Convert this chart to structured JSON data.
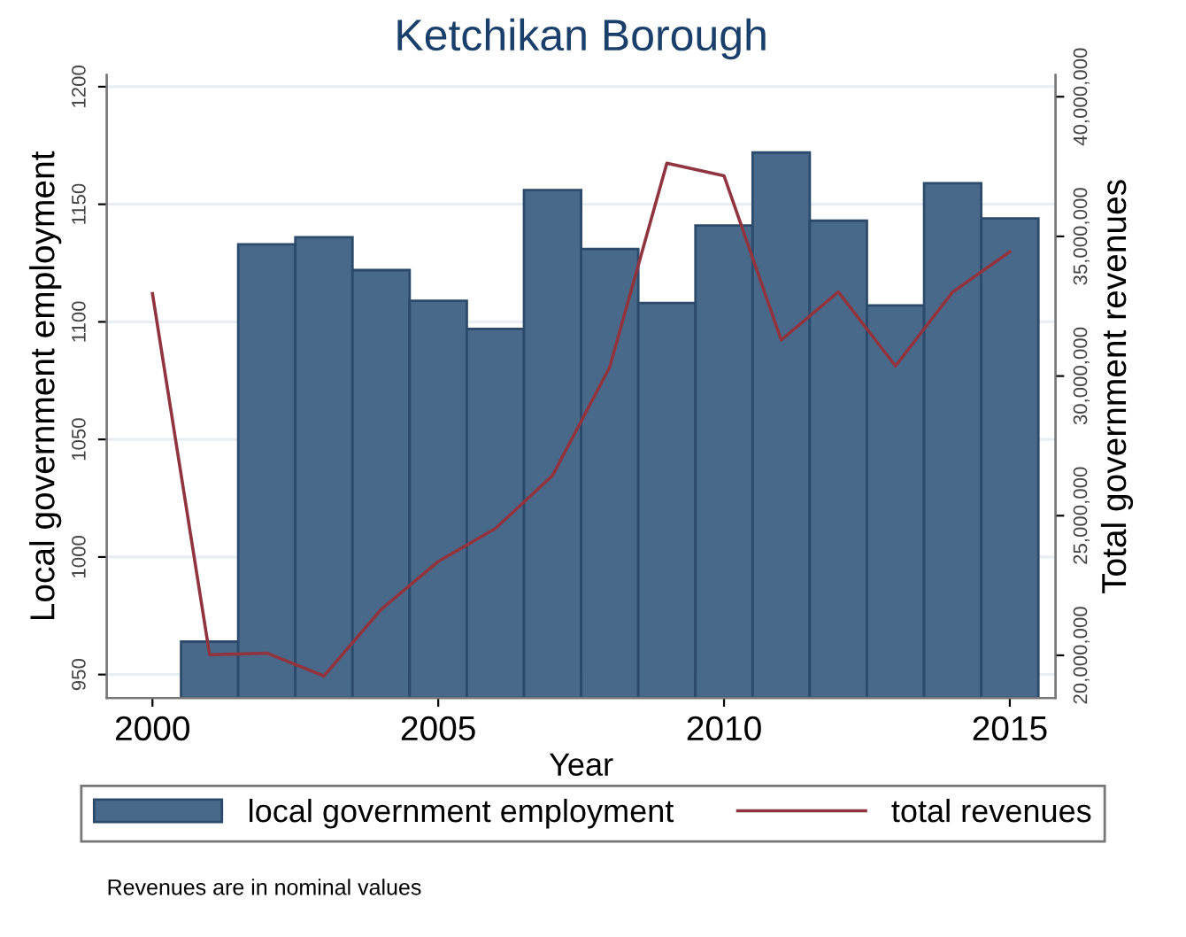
{
  "chart_data": {
    "type": "bar",
    "title": "Ketchikan Borough",
    "xlabel": "Year",
    "ylabel": "Local government employment",
    "y2label": "Total government revenues",
    "x": [
      2000,
      2001,
      2002,
      2003,
      2004,
      2005,
      2006,
      2007,
      2008,
      2009,
      2010,
      2011,
      2012,
      2013,
      2014,
      2015
    ],
    "series": [
      {
        "name": "local government employment",
        "color": "#48698a",
        "values": [
          null,
          964,
          1133,
          1136,
          1122,
          1109,
          1097,
          1156,
          1131,
          1108,
          1141,
          1172,
          1143,
          1107,
          1159,
          1144
        ]
      },
      {
        "name": "total revenues",
        "type": "line",
        "axis": "y2",
        "color": "#903540",
        "values": [
          32950000,
          20020000,
          20080000,
          19260000,
          21640000,
          23360000,
          24540000,
          26440000,
          30320000,
          37620000,
          37170000,
          31290000,
          33010000,
          30360000,
          33010000,
          34450000
        ]
      }
    ],
    "xlim": [
      1999.2,
      2015.8
    ],
    "xticks": [
      2000,
      2005,
      2010,
      2015
    ],
    "ylim": [
      940,
      1205
    ],
    "yticks": [
      950,
      1000,
      1050,
      1100,
      1150,
      1200
    ],
    "y2lim": [
      18470000,
      40780000
    ],
    "y2ticks": [
      {
        "value": 20000000,
        "label": "20,000,000"
      },
      {
        "value": 25000000,
        "label": "25,000,000"
      },
      {
        "value": 30000000,
        "label": "30,000,000"
      },
      {
        "value": 35000000,
        "label": "35,000,000"
      },
      {
        "value": 40000000,
        "label": "40,000,000"
      }
    ],
    "grid": "y",
    "legend": "bottom",
    "annotations": [
      "Revenues are in nominal values"
    ]
  }
}
